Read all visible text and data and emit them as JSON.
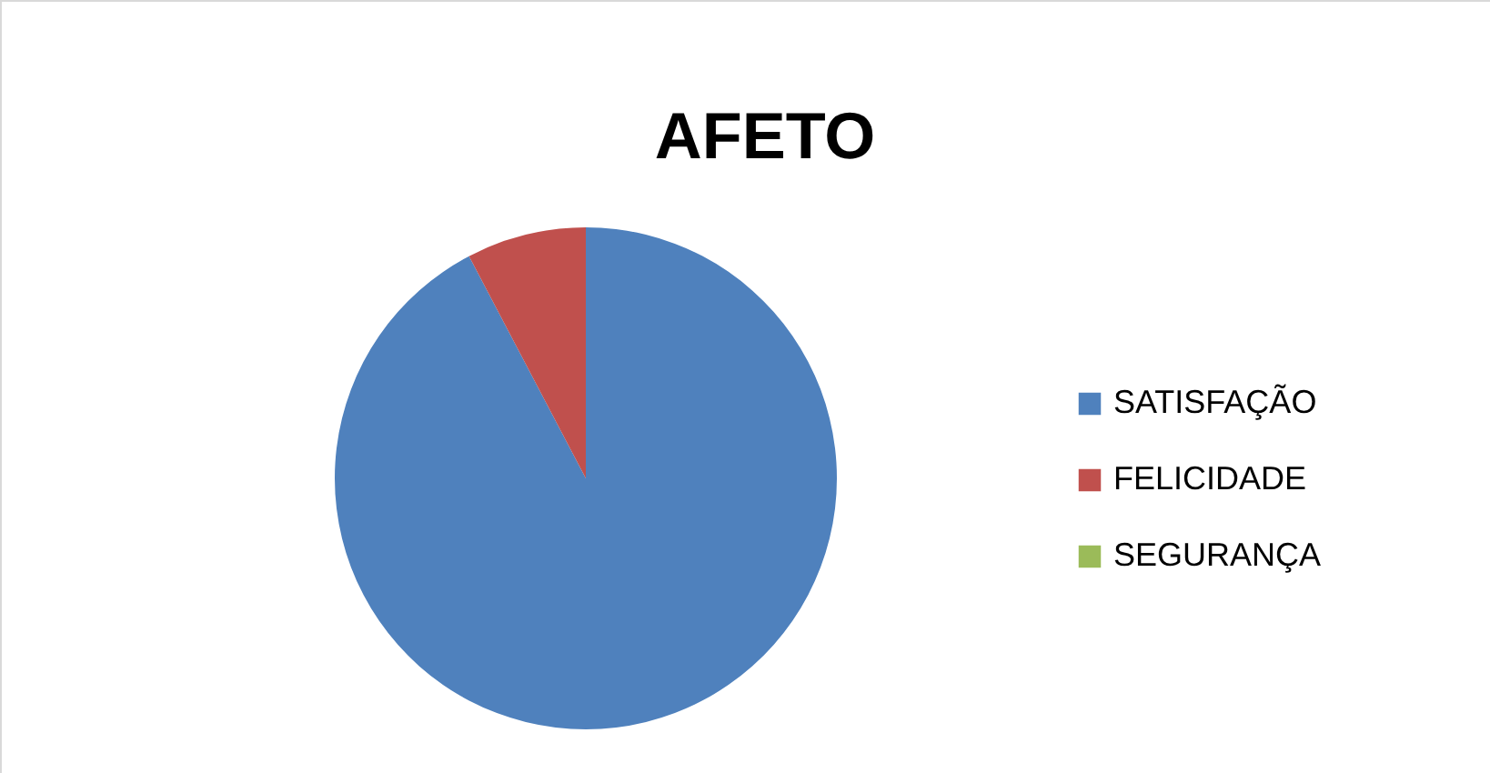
{
  "chart_data": {
    "type": "pie",
    "title": "AFETO",
    "categories": [
      "SATISFAÇÃO",
      "FELICIDADE",
      "SEGURANÇA"
    ],
    "values": [
      92.3,
      7.7,
      0
    ],
    "colors": [
      "#4f81bd",
      "#c0504d",
      "#9bbb59"
    ],
    "legend": "right"
  }
}
